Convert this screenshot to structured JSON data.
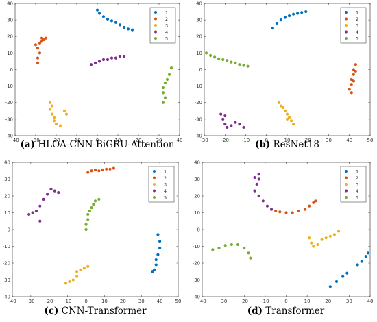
{
  "colors": {
    "1": "#0072BD",
    "2": "#D95319",
    "3": "#EDB120",
    "4": "#7E2F8E",
    "5": "#77AC30"
  },
  "chart_data": [
    {
      "type": "scatter",
      "caption_letter": "(a)",
      "caption_text": "HLOA-CNN-BiGRU-Attention",
      "xlim": [
        -40,
        40
      ],
      "ylim": [
        -40,
        40
      ],
      "xticks": [
        -40,
        -30,
        -20,
        -10,
        0,
        10,
        20,
        30,
        40
      ],
      "yticks": [
        -40,
        -30,
        -20,
        -10,
        0,
        10,
        20,
        30,
        40
      ],
      "grid": false,
      "legend_position": "top-right",
      "series": [
        {
          "name": "1",
          "points": [
            [
              0,
              36
            ],
            [
              1,
              34
            ],
            [
              3,
              32
            ],
            [
              5,
              30.5
            ],
            [
              7,
              29.5
            ],
            [
              9,
              28.5
            ],
            [
              11,
              27
            ],
            [
              13,
              25.5
            ],
            [
              15,
              24.5
            ],
            [
              17,
              24
            ]
          ]
        },
        {
          "name": "2",
          "points": [
            [
              -29,
              4
            ],
            [
              -29,
              7
            ],
            [
              -28,
              10
            ],
            [
              -29,
              13
            ],
            [
              -30,
              15
            ],
            [
              -28,
              16
            ],
            [
              -27,
              17
            ],
            [
              -26,
              18
            ],
            [
              -27,
              19
            ],
            [
              -25,
              19
            ]
          ]
        },
        {
          "name": "3",
          "points": [
            [
              -23,
              -20
            ],
            [
              -22,
              -22
            ],
            [
              -23,
              -24
            ],
            [
              -22,
              -27
            ],
            [
              -21,
              -29
            ],
            [
              -21,
              -31
            ],
            [
              -20,
              -33
            ],
            [
              -18,
              -34
            ],
            [
              -16,
              -25
            ],
            [
              -15,
              -27
            ]
          ]
        },
        {
          "name": "4",
          "points": [
            [
              -3,
              3
            ],
            [
              -1,
              4
            ],
            [
              1,
              5
            ],
            [
              3,
              6
            ],
            [
              5,
              6
            ],
            [
              7,
              7
            ],
            [
              9,
              7
            ],
            [
              11,
              8
            ],
            [
              13,
              8
            ]
          ]
        },
        {
          "name": "5",
          "points": [
            [
              36,
              1
            ],
            [
              35,
              -3
            ],
            [
              34,
              -6
            ],
            [
              33,
              -8
            ],
            [
              32,
              -11
            ],
            [
              32,
              -14
            ],
            [
              33,
              -17
            ],
            [
              32,
              -20
            ]
          ]
        }
      ]
    },
    {
      "type": "scatter",
      "caption_letter": "(b)",
      "caption_text": "ResNet18",
      "xlim": [
        -30,
        50
      ],
      "ylim": [
        -40,
        40
      ],
      "xticks": [
        -30,
        -20,
        -10,
        0,
        10,
        20,
        30,
        40,
        50
      ],
      "yticks": [
        -40,
        -30,
        -20,
        -10,
        0,
        10,
        20,
        30,
        40
      ],
      "grid": false,
      "legend_position": "top-right",
      "series": [
        {
          "name": "1",
          "points": [
            [
              3,
              25
            ],
            [
              5,
              28
            ],
            [
              7,
              30
            ],
            [
              9,
              31.5
            ],
            [
              11,
              32.5
            ],
            [
              13,
              33.5
            ],
            [
              15,
              34
            ],
            [
              17,
              34.5
            ],
            [
              19,
              35
            ]
          ]
        },
        {
          "name": "2",
          "points": [
            [
              43,
              3
            ],
            [
              42,
              0
            ],
            [
              42,
              -3
            ],
            [
              41,
              -6
            ],
            [
              41,
              -9
            ],
            [
              40,
              -12
            ],
            [
              41,
              -14
            ],
            [
              42,
              -7
            ],
            [
              43,
              -1
            ]
          ]
        },
        {
          "name": "3",
          "points": [
            [
              6,
              -20
            ],
            [
              7,
              -22
            ],
            [
              8,
              -23
            ],
            [
              9,
              -25
            ],
            [
              10,
              -27
            ],
            [
              11,
              -29
            ],
            [
              12,
              -31
            ],
            [
              13,
              -33
            ],
            [
              10,
              -30
            ]
          ]
        },
        {
          "name": "4",
          "points": [
            [
              -22,
              -27
            ],
            [
              -21,
              -30
            ],
            [
              -20,
              -33
            ],
            [
              -19,
              -35
            ],
            [
              -17,
              -34
            ],
            [
              -15,
              -32
            ],
            [
              -13,
              -33
            ],
            [
              -11,
              -35
            ],
            [
              -20,
              -28
            ]
          ]
        },
        {
          "name": "5",
          "points": [
            [
              -29,
              10
            ],
            [
              -27,
              8.5
            ],
            [
              -25,
              7.5
            ],
            [
              -23,
              6.5
            ],
            [
              -21,
              6
            ],
            [
              -19,
              5.5
            ],
            [
              -17,
              4.5
            ],
            [
              -15,
              4
            ],
            [
              -13,
              3
            ],
            [
              -11,
              2.5
            ],
            [
              -9,
              2
            ]
          ]
        }
      ]
    },
    {
      "type": "scatter",
      "caption_letter": "(c)",
      "caption_text": "CNN-Transformer",
      "xlim": [
        -40,
        50
      ],
      "ylim": [
        -40,
        40
      ],
      "xticks": [
        -40,
        -30,
        -20,
        -10,
        0,
        10,
        20,
        30,
        40,
        50
      ],
      "yticks": [
        -40,
        -30,
        -20,
        -10,
        0,
        10,
        20,
        30,
        40
      ],
      "grid": false,
      "legend_position": "top-right",
      "series": [
        {
          "name": "1",
          "points": [
            [
              39,
              -3
            ],
            [
              40,
              -7
            ],
            [
              40,
              -11
            ],
            [
              39,
              -15
            ],
            [
              38,
              -18
            ],
            [
              38,
              -21
            ],
            [
              37,
              -24
            ],
            [
              36,
              -25
            ]
          ]
        },
        {
          "name": "2",
          "points": [
            [
              1,
              34
            ],
            [
              3,
              35
            ],
            [
              5,
              35.5
            ],
            [
              7,
              35
            ],
            [
              9,
              35.5
            ],
            [
              11,
              36
            ],
            [
              13,
              36
            ],
            [
              15,
              36.5
            ]
          ]
        },
        {
          "name": "3",
          "points": [
            [
              -11,
              -32
            ],
            [
              -9,
              -31
            ],
            [
              -7,
              -30
            ],
            [
              -5,
              -28
            ],
            [
              -5,
              -25
            ],
            [
              -3,
              -24
            ],
            [
              -1,
              -23
            ],
            [
              1,
              -22
            ]
          ]
        },
        {
          "name": "4",
          "points": [
            [
              -31,
              9
            ],
            [
              -29,
              10
            ],
            [
              -27,
              11
            ],
            [
              -25,
              14
            ],
            [
              -23,
              18
            ],
            [
              -21,
              21
            ],
            [
              -19,
              24
            ],
            [
              -17,
              23
            ],
            [
              -15,
              22
            ],
            [
              -25,
              5
            ]
          ]
        },
        {
          "name": "5",
          "points": [
            [
              0,
              0
            ],
            [
              0,
              3
            ],
            [
              1,
              6
            ],
            [
              1,
              9
            ],
            [
              2,
              11
            ],
            [
              3,
              13
            ],
            [
              4,
              15
            ],
            [
              5,
              17
            ],
            [
              7,
              18
            ]
          ]
        }
      ]
    },
    {
      "type": "scatter",
      "caption_letter": "(d)",
      "caption_text": "Transformer",
      "xlim": [
        -40,
        40
      ],
      "ylim": [
        -40,
        40
      ],
      "xticks": [
        -40,
        -30,
        -20,
        -10,
        0,
        10,
        20,
        30,
        40
      ],
      "yticks": [
        -40,
        -30,
        -20,
        -10,
        0,
        10,
        20,
        30,
        40
      ],
      "grid": false,
      "legend_position": "top-right",
      "series": [
        {
          "name": "1",
          "points": [
            [
              21,
              -34
            ],
            [
              24,
              -31
            ],
            [
              27,
              -28
            ],
            [
              29,
              -26
            ],
            [
              34,
              -21
            ],
            [
              36,
              -19
            ],
            [
              38,
              -16
            ],
            [
              39,
              -14
            ]
          ]
        },
        {
          "name": "2",
          "points": [
            [
              -5,
              11
            ],
            [
              -3,
              10.5
            ],
            [
              0,
              10
            ],
            [
              3,
              10
            ],
            [
              6,
              11
            ],
            [
              9,
              12
            ],
            [
              11,
              14
            ],
            [
              13,
              16
            ],
            [
              14,
              17
            ]
          ]
        },
        {
          "name": "3",
          "points": [
            [
              11,
              -5
            ],
            [
              12,
              -8
            ],
            [
              13,
              -10
            ],
            [
              15,
              -9
            ],
            [
              17,
              -6
            ],
            [
              19,
              -5
            ],
            [
              21,
              -4
            ],
            [
              23,
              -3
            ],
            [
              25,
              -1
            ]
          ]
        },
        {
          "name": "4",
          "points": [
            [
              -15,
              23
            ],
            [
              -14,
              27
            ],
            [
              -13,
              30
            ],
            [
              -13,
              33
            ],
            [
              -15,
              31
            ],
            [
              -13,
              20
            ],
            [
              -11,
              17
            ],
            [
              -9,
              14
            ],
            [
              -7,
              12
            ]
          ]
        },
        {
          "name": "5",
          "points": [
            [
              -35,
              -12
            ],
            [
              -32,
              -11
            ],
            [
              -29,
              -9.5
            ],
            [
              -26,
              -9
            ],
            [
              -23,
              -9
            ],
            [
              -20,
              -11
            ],
            [
              -18,
              -14
            ],
            [
              -17,
              -17
            ]
          ]
        }
      ]
    }
  ]
}
